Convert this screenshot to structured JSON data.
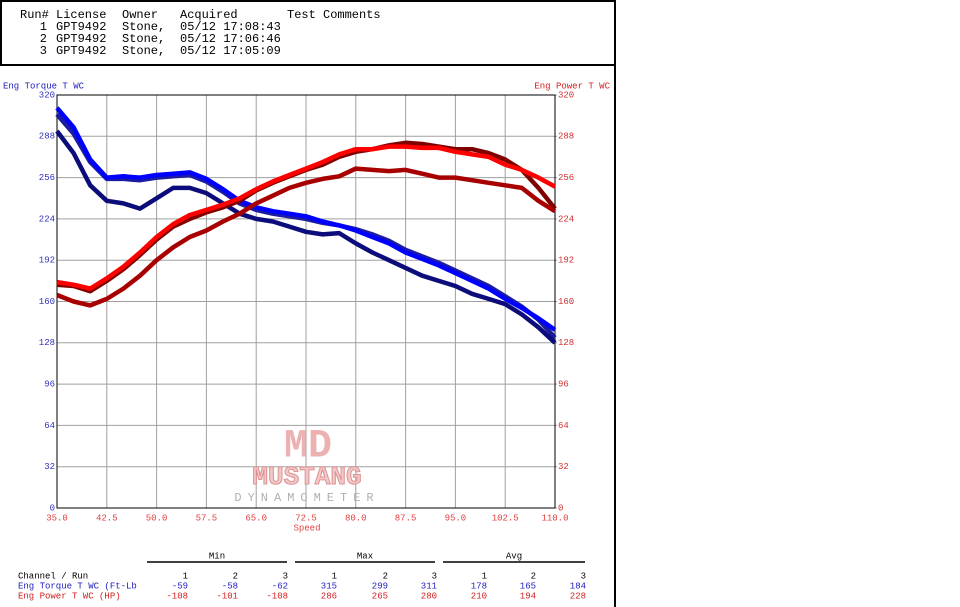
{
  "header_table": {
    "columns": [
      "Run#",
      "License",
      "Owner",
      "Acquired",
      "Test Comments"
    ],
    "rows": [
      [
        "1",
        "GPT9492",
        "Stone,",
        "05/12 17:08:43"
      ],
      [
        "2",
        "GPT9492",
        "Stone,",
        "05/12 17:06:46"
      ],
      [
        "3",
        "GPT9492",
        "Stone,",
        "05/12 17:05:09"
      ]
    ]
  },
  "watermark": {
    "logo": "MD",
    "name": "MUSTANG",
    "sub": "DYNAMOMETER"
  },
  "chart_data": {
    "type": "line",
    "y_label": "Eng Torque T WC",
    "y2_label": "Eng Power T WC",
    "x_label": "Speed",
    "xlim": [
      35,
      110
    ],
    "xticks": [
      {
        "value": 35,
        "label": "35.0"
      },
      42.5,
      {
        "value": 50,
        "label": "50.0"
      },
      57.5,
      {
        "value": 65,
        "label": "65.0"
      },
      72.5,
      {
        "value": 80,
        "label": "80.0"
      },
      87.5,
      {
        "value": 95,
        "label": "95.0"
      },
      102.5,
      {
        "value": 110,
        "label": "110.0"
      }
    ],
    "ylim": [
      0,
      320
    ],
    "yticks": [
      0,
      32,
      64,
      96,
      128,
      160,
      192,
      224,
      256,
      288,
      320
    ],
    "y2lim": [
      0,
      320
    ],
    "y2ticks": [
      0,
      32,
      64,
      96,
      128,
      160,
      192,
      224,
      256,
      288,
      320
    ],
    "grid": true,
    "x": [
      35,
      37.5,
      40,
      42.5,
      45,
      47.5,
      50,
      52.5,
      55,
      57.5,
      60,
      62.5,
      65,
      67.5,
      70,
      72.5,
      75,
      77.5,
      80,
      82.5,
      85,
      87.5,
      90,
      92.5,
      95,
      97.5,
      100,
      102.5,
      105,
      107.5,
      110
    ],
    "series": [
      {
        "color": "#1c1ca0",
        "values": [
          305,
          290,
          268,
          255,
          255,
          254,
          256,
          257,
          258,
          253,
          245,
          236,
          231,
          228,
          226,
          224,
          221,
          219,
          216,
          212,
          207,
          200,
          195,
          190,
          184,
          178,
          172,
          164,
          156,
          146,
          132
        ]
      },
      {
        "color": "#0c0c7a",
        "values": [
          292,
          275,
          250,
          238,
          236,
          232,
          240,
          248,
          248,
          244,
          236,
          228,
          224,
          222,
          218,
          214,
          212,
          213,
          205,
          198,
          192,
          186,
          180,
          176,
          172,
          166,
          162,
          158,
          150,
          140,
          128
        ]
      },
      {
        "color": "#0000ff",
        "values": [
          310,
          295,
          270,
          256,
          257,
          256,
          258,
          259,
          260,
          255,
          247,
          238,
          233,
          230,
          228,
          226,
          222,
          219,
          215,
          210,
          205,
          198,
          193,
          188,
          182,
          176,
          170,
          162,
          155,
          147,
          138
        ]
      },
      {
        "color": "#800000",
        "axis": "y2",
        "values": [
          173,
          172,
          168,
          176,
          185,
          196,
          208,
          218,
          224,
          229,
          233,
          238,
          246,
          252,
          257,
          262,
          266,
          272,
          276,
          278,
          281,
          283,
          282,
          280,
          278,
          278,
          275,
          270,
          262,
          248,
          232
        ]
      },
      {
        "color": "#a80000",
        "axis": "y2",
        "values": [
          165,
          160,
          157,
          162,
          170,
          180,
          192,
          202,
          210,
          215,
          222,
          228,
          236,
          242,
          248,
          252,
          255,
          257,
          263,
          262,
          261,
          262,
          259,
          256,
          256,
          254,
          252,
          250,
          248,
          238,
          230
        ]
      },
      {
        "color": "#ff0000",
        "axis": "y2",
        "values": [
          175,
          173,
          170,
          178,
          187,
          198,
          210,
          220,
          227,
          231,
          235,
          240,
          247,
          253,
          258,
          263,
          268,
          274,
          278,
          278,
          280,
          280,
          279,
          279,
          276,
          274,
          272,
          266,
          262,
          256,
          249
        ]
      }
    ]
  },
  "stats_table": {
    "row_header": "Channel / Run",
    "groups": [
      "Min",
      "Max",
      "Avg"
    ],
    "runs": [
      "1",
      "2",
      "3"
    ],
    "rows": [
      {
        "label": "Eng Torque T WC (Ft-Lb",
        "values": [
          -59,
          -58,
          -62,
          315,
          299,
          311,
          178,
          165,
          184
        ]
      },
      {
        "label": "Eng Power T WC (HP)",
        "values": [
          -108,
          -101,
          -108,
          286,
          265,
          280,
          210,
          194,
          228
        ]
      }
    ]
  }
}
